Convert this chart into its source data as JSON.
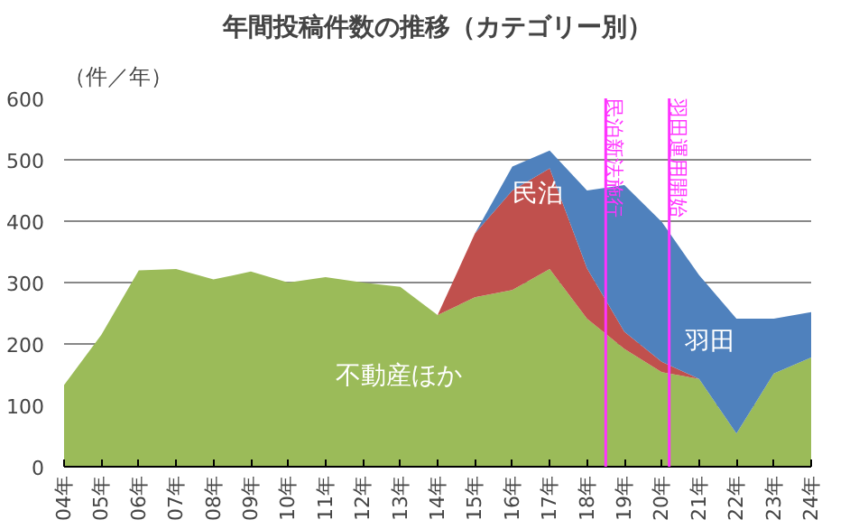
{
  "chart_data": {
    "type": "area",
    "stacked": true,
    "title": "年間投稿件数の推移（カテゴリー別）",
    "ylabel": "（件／年）",
    "x": [
      4,
      5,
      6,
      7,
      8,
      9,
      10,
      11,
      12,
      13,
      14,
      15,
      16,
      17,
      18,
      19,
      20,
      21,
      22,
      23,
      24
    ],
    "xlim": [
      4,
      24
    ],
    "ylim": [
      0,
      600
    ],
    "yticks": [
      0,
      100,
      200,
      300,
      400,
      500,
      600
    ],
    "xticks": [
      {
        "value": 4,
        "label": "04年"
      },
      {
        "value": 5,
        "label": "05年"
      },
      {
        "value": 6,
        "label": "06年"
      },
      {
        "value": 7,
        "label": "07年"
      },
      {
        "value": 8,
        "label": "08年"
      },
      {
        "value": 9,
        "label": "09年"
      },
      {
        "value": 10,
        "label": "10年"
      },
      {
        "value": 11,
        "label": "11年"
      },
      {
        "value": 12,
        "label": "12年"
      },
      {
        "value": 13,
        "label": "13年"
      },
      {
        "value": 14,
        "label": "14年"
      },
      {
        "value": 15,
        "label": "15年"
      },
      {
        "value": 16,
        "label": "16年"
      },
      {
        "value": 17,
        "label": "17年"
      },
      {
        "value": 18,
        "label": "18年"
      },
      {
        "value": 19,
        "label": "19年"
      },
      {
        "value": 20,
        "label": "20年"
      },
      {
        "value": 21,
        "label": "21年"
      },
      {
        "value": 22,
        "label": "22年"
      },
      {
        "value": 23,
        "label": "23年"
      },
      {
        "value": 24,
        "label": "24年"
      }
    ],
    "series": [
      {
        "name": "不動産ほか",
        "color": "#9bbb59",
        "values": [
          133,
          215,
          320,
          322,
          305,
          318,
          300,
          309,
          300,
          293,
          247,
          276,
          288,
          322,
          241,
          192,
          154,
          143,
          54,
          152,
          178
        ]
      },
      {
        "name": "民泊",
        "color": "#c0504d",
        "values": [
          0,
          0,
          0,
          0,
          0,
          0,
          0,
          0,
          0,
          0,
          0,
          104,
          162,
          164,
          82,
          28,
          17,
          0,
          0,
          0,
          0
        ]
      },
      {
        "name": "羽田",
        "color": "#4f81bd",
        "values": [
          0,
          0,
          0,
          0,
          0,
          0,
          0,
          0,
          0,
          0,
          0,
          0,
          39,
          29,
          127,
          239,
          228,
          169,
          187,
          89,
          74
        ]
      }
    ],
    "ref_lines": [
      {
        "axis": "x",
        "value": 18.5,
        "label": "民泊新法施行",
        "color": "#ff33ff"
      },
      {
        "axis": "x",
        "value": 20.2,
        "label": "羽田運用開始",
        "color": "#ff33ff"
      }
    ],
    "grid": "y"
  }
}
